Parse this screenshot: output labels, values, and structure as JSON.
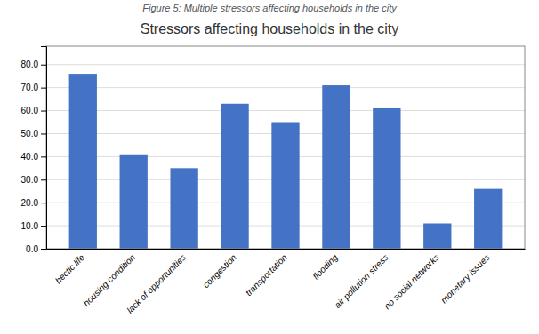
{
  "chart_data": {
    "type": "bar",
    "title": "Stressors affecting households in the city",
    "subtitle": "Figure 5: Multiple stressors affecting households in the city",
    "categories": [
      "hectic life",
      "housing condition",
      "lack of opportunities",
      "congestion",
      "transportation",
      "flooding",
      "air pollution stress",
      "no social networks",
      "monetary issues"
    ],
    "values": [
      76,
      41,
      35,
      63,
      55,
      71,
      61,
      11,
      26
    ],
    "color": "#4472C4",
    "ylim": [
      0,
      88
    ],
    "yticks": [
      {
        "value": 0,
        "label": "0.0"
      },
      {
        "value": 10,
        "label": "10.0"
      },
      {
        "value": 20,
        "label": "20.0"
      },
      {
        "value": 30,
        "label": "30.0"
      },
      {
        "value": 40,
        "label": "40.0"
      },
      {
        "value": 50,
        "label": "50.0"
      },
      {
        "value": 60,
        "label": "60.0"
      },
      {
        "value": 70,
        "label": "70.0"
      },
      {
        "value": 80,
        "label": "80.0"
      }
    ],
    "grid": true
  }
}
